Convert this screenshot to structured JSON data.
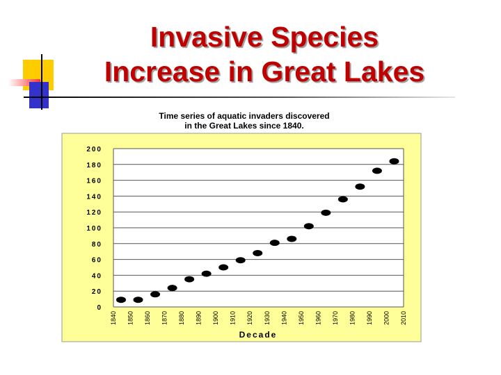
{
  "slide": {
    "title_line1": "Invasive Species",
    "title_line2": "Increase in Great Lakes"
  },
  "colors": {
    "title": "#c00000",
    "plot_background": "#ffff99",
    "marker": "#000000",
    "deco_yellow": "#ffcc00",
    "deco_red": "#ff3333",
    "deco_blue": "#3333cc"
  },
  "chart_data": {
    "type": "scatter",
    "title": "Time series of aquatic invaders discovered in the Great Lakes since 1840.",
    "title_line1": "Time series of aquatic invaders discovered",
    "title_line2": "in the Great Lakes since 1840.",
    "xlabel": "Decade",
    "ylabel": "",
    "x_ticks": [
      "1840",
      "1850",
      "1860",
      "1870",
      "1880",
      "1890",
      "1900",
      "1910",
      "1920",
      "1930",
      "1940",
      "1950",
      "1960",
      "1970",
      "1980",
      "1990",
      "2000",
      "2010"
    ],
    "y_ticks": [
      "0",
      "20",
      "40",
      "60",
      "80",
      "100",
      "120",
      "140",
      "160",
      "180",
      "200"
    ],
    "ylim": [
      0,
      200
    ],
    "grid": true,
    "series": [
      {
        "x": [
          "1840",
          "1850",
          "1860",
          "1870",
          "1880",
          "1890",
          "1900",
          "1910",
          "1920",
          "1930",
          "1940",
          "1950",
          "1960",
          "1970",
          "1980",
          "1990",
          "2000"
        ],
        "values": [
          9,
          9,
          16,
          24,
          35,
          42,
          50,
          59,
          68,
          81,
          86,
          102,
          119,
          136,
          152,
          172,
          184
        ]
      }
    ]
  }
}
